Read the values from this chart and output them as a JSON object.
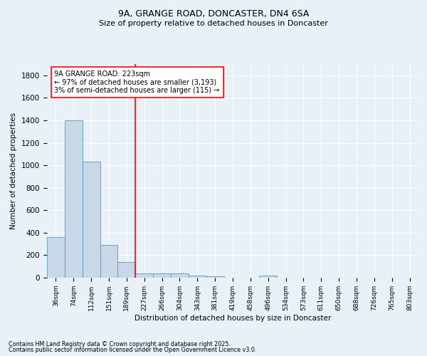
{
  "title1": "9A, GRANGE ROAD, DONCASTER, DN4 6SA",
  "title2": "Size of property relative to detached houses in Doncaster",
  "xlabel": "Distribution of detached houses by size in Doncaster",
  "ylabel": "Number of detached properties",
  "categories": [
    "36sqm",
    "74sqm",
    "112sqm",
    "151sqm",
    "189sqm",
    "227sqm",
    "266sqm",
    "304sqm",
    "343sqm",
    "381sqm",
    "419sqm",
    "458sqm",
    "496sqm",
    "534sqm",
    "573sqm",
    "611sqm",
    "650sqm",
    "688sqm",
    "726sqm",
    "765sqm",
    "803sqm"
  ],
  "values": [
    360,
    1400,
    1030,
    290,
    140,
    40,
    35,
    35,
    20,
    15,
    0,
    0,
    20,
    0,
    0,
    0,
    0,
    0,
    0,
    0,
    0
  ],
  "bar_color": "#c8d8e8",
  "bar_edge_color": "#5599bb",
  "vline_x_idx": 5,
  "vline_color": "red",
  "annotation_text": "9A GRANGE ROAD: 223sqm\n← 97% of detached houses are smaller (3,193)\n3% of semi-detached houses are larger (115) →",
  "annotation_box_color": "white",
  "annotation_box_edge": "red",
  "bg_color": "#e8f0f8",
  "grid_color": "white",
  "yticks": [
    0,
    200,
    400,
    600,
    800,
    1000,
    1200,
    1400,
    1600,
    1800
  ],
  "ylim": [
    0,
    1900
  ],
  "footer1": "Contains HM Land Registry data © Crown copyright and database right 2025.",
  "footer2": "Contains public sector information licensed under the Open Government Licence v3.0."
}
